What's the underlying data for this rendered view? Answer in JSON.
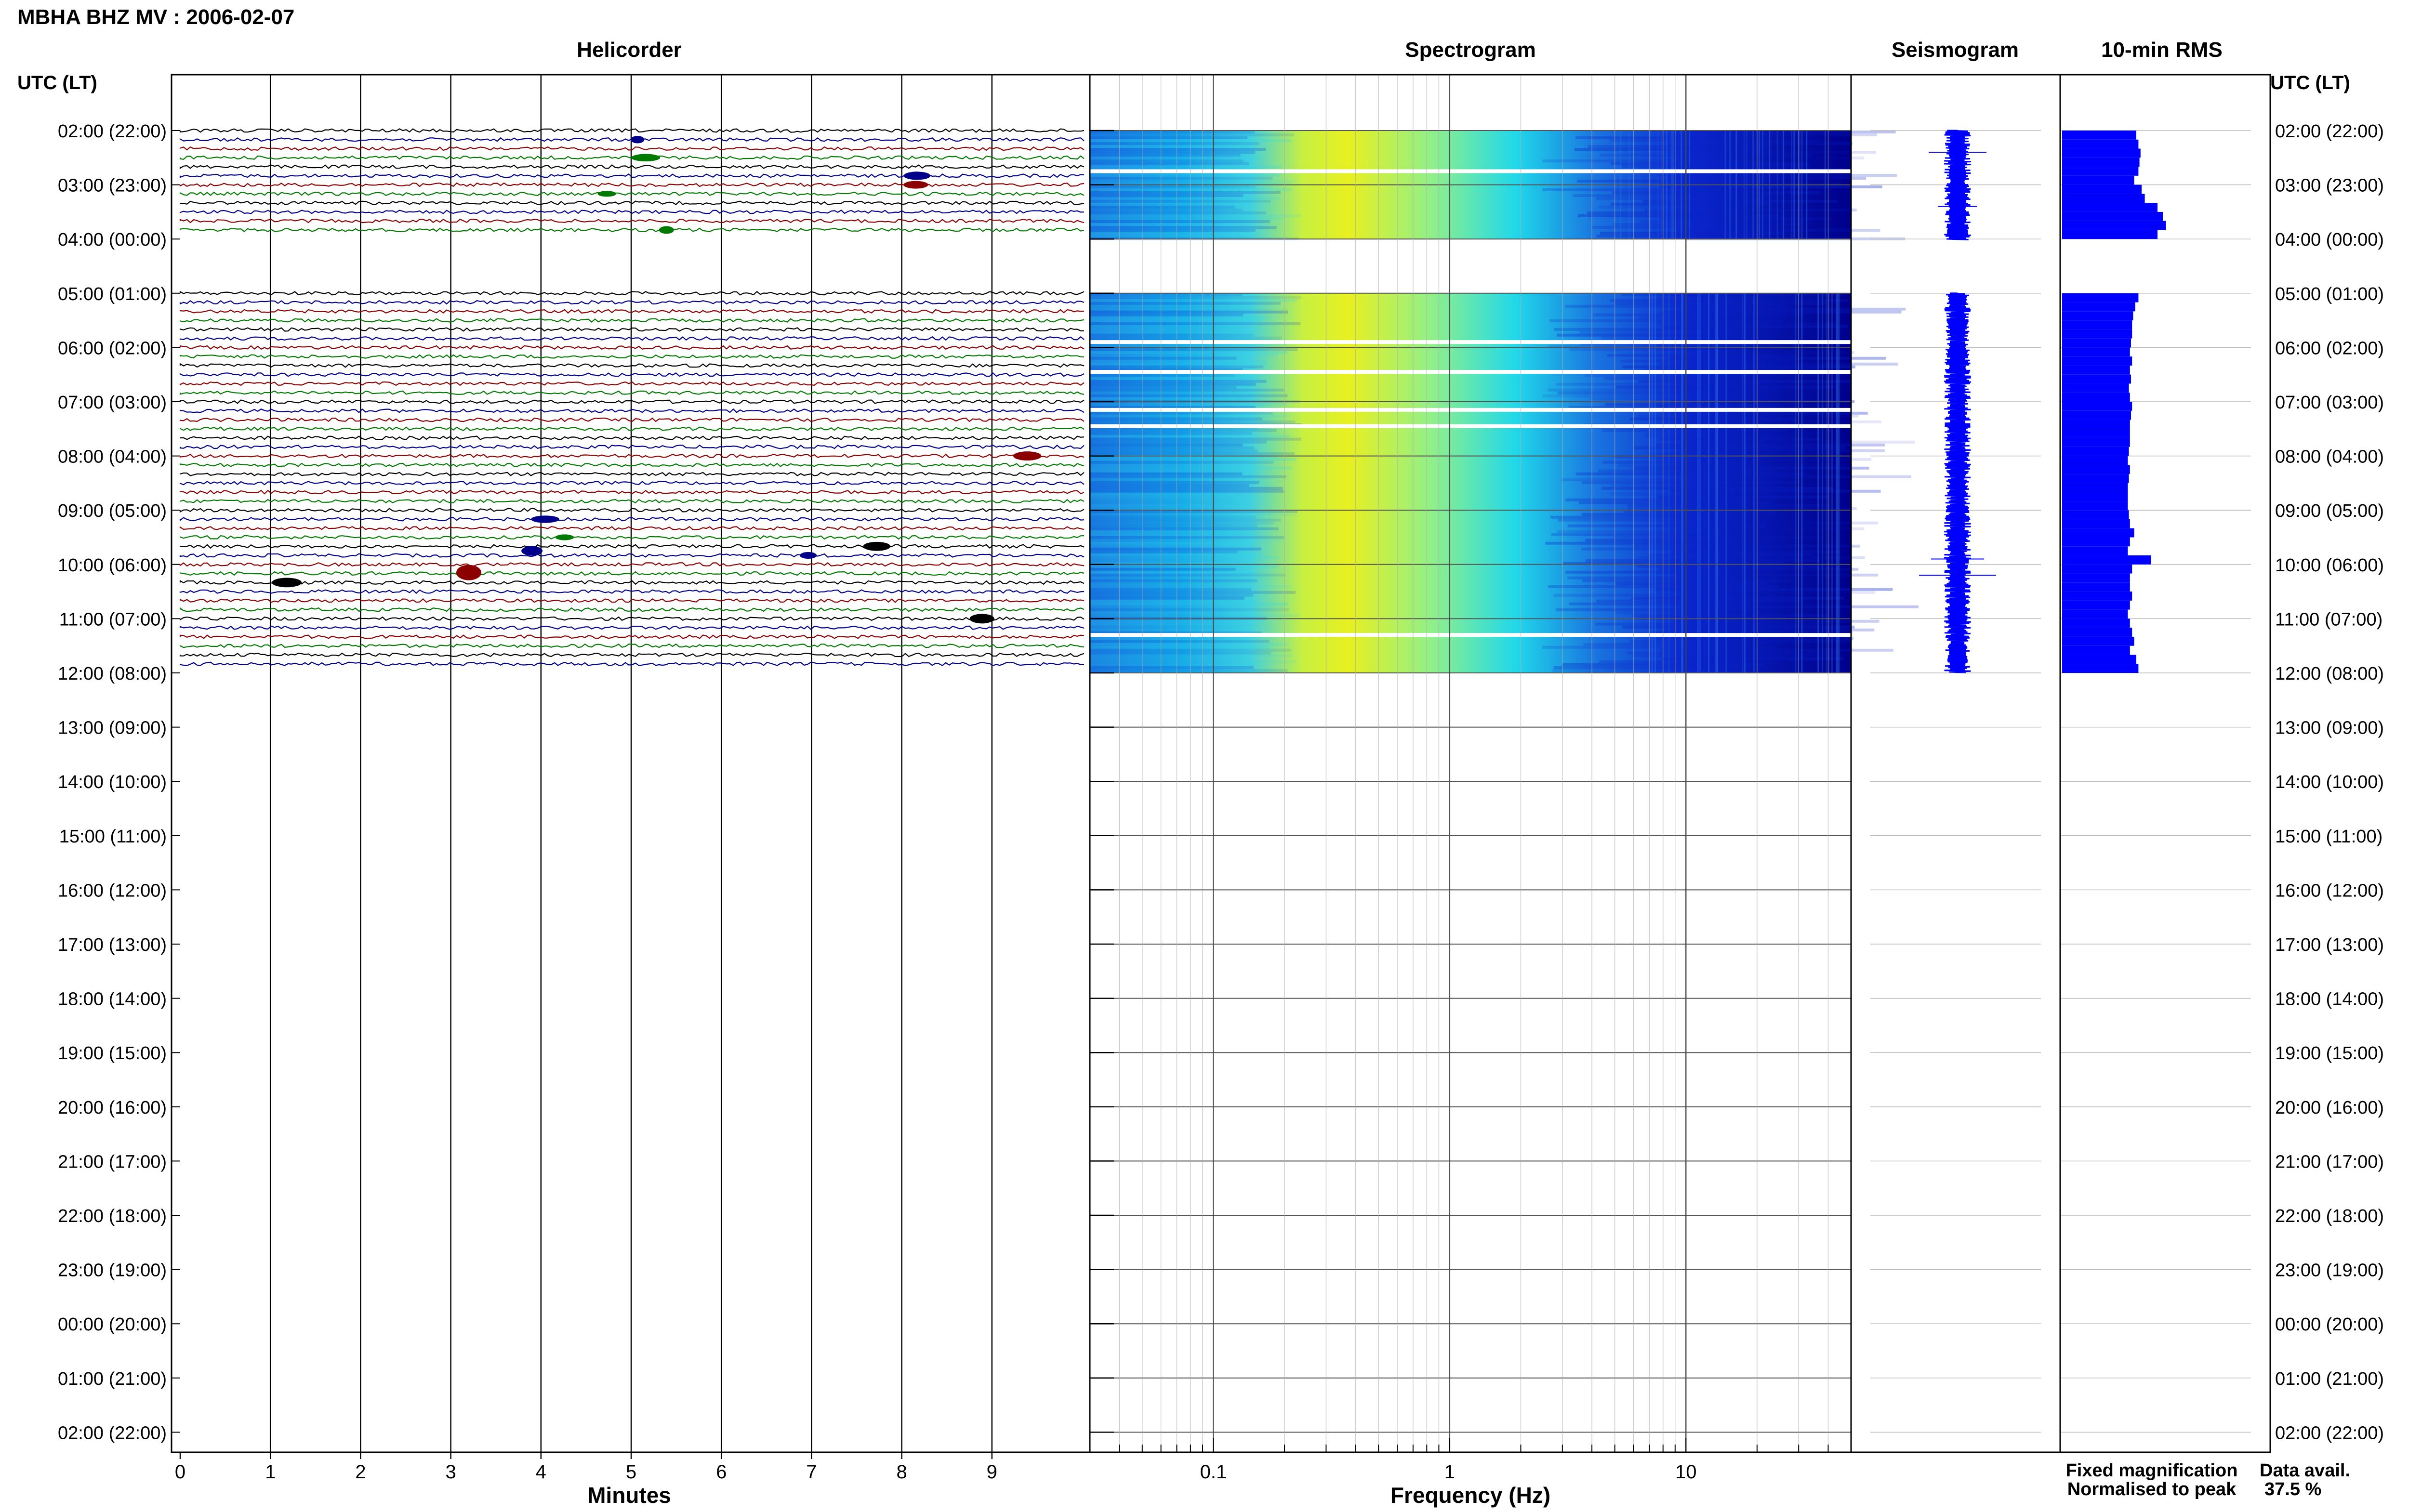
{
  "header": {
    "title": "MBHA BHZ MV : 2006-02-07",
    "utc_label": "UTC (LT)"
  },
  "panels": {
    "helicorder": "Helicorder",
    "spectrogram": "Spectrogram",
    "seismogram": "Seismogram",
    "rms": "10-min RMS"
  },
  "axes": {
    "helicorder_xlabel": "Minutes",
    "spectrogram_xlabel": "Frequency (Hz)"
  },
  "legend": {
    "fixed": "Fixed magnification",
    "normalised": "Normalised to peak",
    "fixed_color": "#0000ff",
    "normalised_color": "#ff0000"
  },
  "availability": {
    "label": "Data avail.",
    "value": "37.5 %"
  },
  "colors": {
    "trace_cycle": [
      "#000000",
      "#00008b",
      "#8b0000",
      "#007a00"
    ],
    "bar": "#0000ff",
    "spectro_low": "#00008b",
    "spectro_mid": "#00ffff",
    "spectro_high": "#ffff00"
  },
  "chart_data": {
    "type": "heatmap",
    "hour_labels": [
      "02:00 (22:00)",
      "03:00 (23:00)",
      "04:00 (00:00)",
      "05:00 (01:00)",
      "06:00 (02:00)",
      "07:00 (03:00)",
      "08:00 (04:00)",
      "09:00 (05:00)",
      "10:00 (06:00)",
      "11:00 (07:00)",
      "12:00 (08:00)",
      "13:00 (09:00)",
      "14:00 (10:00)",
      "15:00 (11:00)",
      "16:00 (12:00)",
      "17:00 (13:00)",
      "18:00 (14:00)",
      "19:00 (15:00)",
      "20:00 (16:00)",
      "21:00 (17:00)",
      "22:00 (18:00)",
      "23:00 (19:00)",
      "00:00 (20:00)",
      "01:00 (21:00)",
      "02:00 (22:00)"
    ],
    "helicorder_xticks": [
      "0",
      "1",
      "2",
      "3",
      "4",
      "5",
      "6",
      "7",
      "8",
      "9"
    ],
    "helicorder_xlim": [
      0,
      10
    ],
    "frequency_xticks": [
      "0.1",
      "1",
      "10"
    ],
    "frequency_xlim": [
      0.03,
      50
    ],
    "frequency_scale": "log",
    "data_segments_hours": [
      [
        2,
        4
      ],
      [
        5,
        12
      ]
    ],
    "traces_per_hour": 6,
    "rms_10min": [
      0.7,
      0.72,
      0.74,
      0.73,
      0.72,
      0.68,
      0.75,
      0.78,
      0.9,
      0.95,
      0.98,
      0.9,
      0.72,
      0.69,
      0.67,
      0.66,
      0.66,
      0.65,
      0.64,
      0.66,
      0.64,
      0.65,
      0.63,
      0.64,
      0.66,
      0.65,
      0.64,
      0.64,
      0.64,
      0.63,
      0.62,
      0.64,
      0.63,
      0.62,
      0.62,
      0.62,
      0.63,
      0.64,
      0.68,
      0.64,
      0.62,
      0.84,
      0.66,
      0.64,
      0.64,
      0.66,
      0.64,
      0.62,
      0.64,
      0.66,
      0.68,
      0.64,
      0.7,
      0.72
    ]
  }
}
